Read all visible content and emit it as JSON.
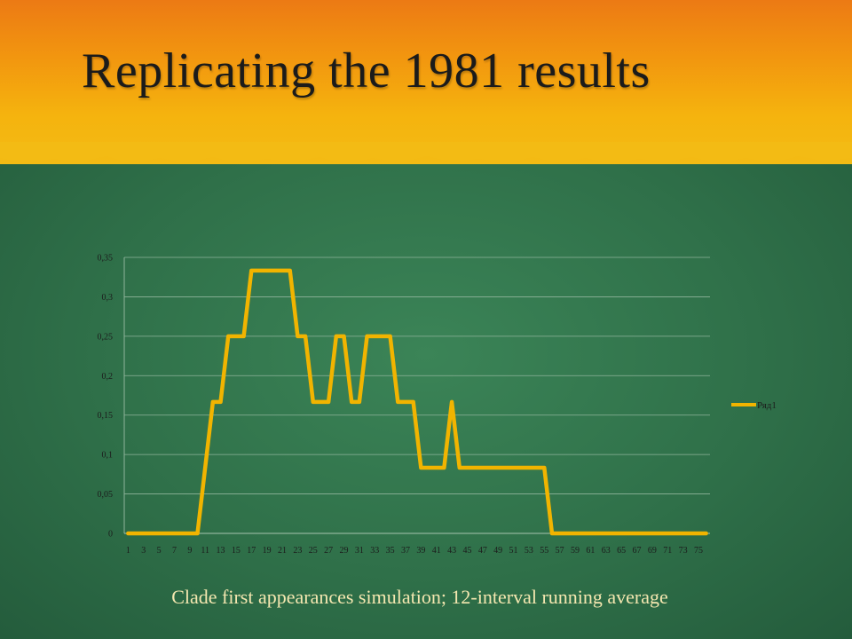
{
  "slide": {
    "title": "Replicating the 1981 results",
    "caption": "Clade first appearances simulation; 12-interval running average",
    "colors": {
      "header_orange": "#ec7a14",
      "header_yellow": "#f3bb14",
      "background_green": "#2f6e4a",
      "caption": "#f4e7b0",
      "line": "#f1b400",
      "grid": "#8fb49b"
    }
  },
  "chart_data": {
    "type": "line",
    "title": "",
    "xlabel": "",
    "ylabel": "",
    "ylim": [
      0,
      0.35
    ],
    "yticks": [
      "0",
      "0,05",
      "0,1",
      "0,15",
      "0,2",
      "0,25",
      "0,3",
      "0,35"
    ],
    "xticks_shown": [
      "1",
      "3",
      "5",
      "7",
      "9",
      "11",
      "13",
      "15",
      "17",
      "19",
      "21",
      "23",
      "25",
      "27",
      "29",
      "31",
      "33",
      "35",
      "37",
      "39",
      "41",
      "43",
      "45",
      "47",
      "49",
      "51",
      "53",
      "55",
      "57",
      "59",
      "61",
      "63",
      "65",
      "67",
      "69",
      "71",
      "73",
      "75"
    ],
    "grid": true,
    "legend_position": "right",
    "x": [
      1,
      2,
      3,
      4,
      5,
      6,
      7,
      8,
      9,
      10,
      11,
      12,
      13,
      14,
      15,
      16,
      17,
      18,
      19,
      20,
      21,
      22,
      23,
      24,
      25,
      26,
      27,
      28,
      29,
      30,
      31,
      32,
      33,
      34,
      35,
      36,
      37,
      38,
      39,
      40,
      41,
      42,
      43,
      44,
      45,
      46,
      47,
      48,
      49,
      50,
      51,
      52,
      53,
      54,
      55,
      56,
      57,
      58,
      59,
      60,
      61,
      62,
      63,
      64,
      65,
      66,
      67,
      68,
      69,
      70,
      71,
      72,
      73,
      74,
      75,
      76
    ],
    "series": [
      {
        "name": "Ряд1",
        "color": "#f1b400",
        "values": [
          0,
          0,
          0,
          0,
          0,
          0,
          0,
          0,
          0,
          0,
          0.0833,
          0.1667,
          0.1667,
          0.25,
          0.25,
          0.25,
          0.3333,
          0.3333,
          0.3333,
          0.3333,
          0.3333,
          0.3333,
          0.25,
          0.25,
          0.1667,
          0.1667,
          0.1667,
          0.25,
          0.25,
          0.1667,
          0.1667,
          0.25,
          0.25,
          0.25,
          0.25,
          0.1667,
          0.1667,
          0.1667,
          0.0833,
          0.0833,
          0.0833,
          0.0833,
          0.1667,
          0.0833,
          0.0833,
          0.0833,
          0.0833,
          0.0833,
          0.0833,
          0.0833,
          0.0833,
          0.0833,
          0.0833,
          0.0833,
          0.0833,
          0,
          0,
          0,
          0,
          0,
          0,
          0,
          0,
          0,
          0,
          0,
          0,
          0,
          0,
          0,
          0,
          0,
          0,
          0,
          0,
          0
        ]
      }
    ]
  }
}
